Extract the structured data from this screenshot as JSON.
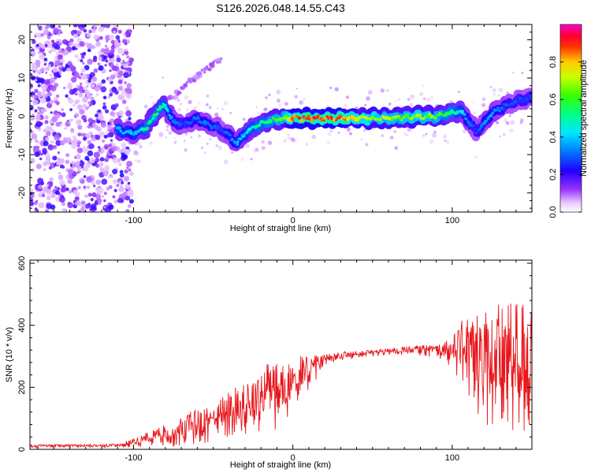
{
  "title": "S126.2026.048.14.55.C43",
  "colors": {
    "snr_line": "#e8161b",
    "axis": "#000000",
    "colormap": [
      "#ffffff",
      "#f0d8ff",
      "#9933ff",
      "#3300ff",
      "#0055ff",
      "#00e5ff",
      "#00ff66",
      "#66ff00",
      "#ffee00",
      "#ff8800",
      "#ff0000",
      "#ff00cc"
    ]
  },
  "chart_data": [
    {
      "type": "heatmap",
      "name": "spectrogram",
      "xlabel": "Height of straight line (km)",
      "ylabel": "Frequency (Hz)",
      "xlim": [
        -165,
        150
      ],
      "ylim": [
        -25,
        24
      ],
      "x_ticks": [
        -100,
        0,
        100
      ],
      "x_tick_labels": [
        "-100",
        "0",
        "100"
      ],
      "y_ticks": [
        -20,
        -10,
        0,
        10,
        20
      ],
      "y_tick_labels": [
        "-20",
        "-10",
        "0",
        "10",
        "20"
      ],
      "noise_region_x": [
        -165,
        -105
      ],
      "ridge": {
        "x": [
          -110,
          -100,
          -92,
          -85,
          -80,
          -75,
          -68,
          -60,
          -52,
          -45,
          -40,
          -35,
          -30,
          -25,
          -20,
          -15,
          -10,
          -5,
          0,
          10,
          20,
          30,
          40,
          50,
          60,
          70,
          80,
          90,
          100,
          105,
          110,
          115,
          120,
          125,
          130,
          140,
          150
        ],
        "freq": [
          -3.5,
          -4.5,
          -3,
          1.5,
          3,
          -1.5,
          -2,
          -0.5,
          -2.5,
          -3.5,
          -5,
          -7,
          -4.5,
          -3,
          -2,
          -1.2,
          -0.8,
          -0.5,
          -0.5,
          -0.5,
          -0.5,
          -0.5,
          -0.5,
          -0.5,
          -0.5,
          -0.3,
          0,
          0,
          1,
          1.5,
          -1,
          -4,
          -2,
          1,
          2,
          4,
          5
        ],
        "amplitude": [
          0.45,
          0.4,
          0.55,
          0.6,
          0.5,
          0.35,
          0.3,
          0.35,
          0.35,
          0.3,
          0.35,
          0.4,
          0.45,
          0.5,
          0.55,
          0.6,
          0.65,
          0.7,
          0.9,
          0.95,
          0.95,
          0.92,
          0.8,
          0.75,
          0.75,
          0.7,
          0.75,
          0.7,
          0.55,
          0.5,
          0.35,
          0.3,
          0.35,
          0.4,
          0.35,
          0.3,
          0.3
        ]
      },
      "side_branch": {
        "x": [
          -85,
          -75,
          -65,
          -55,
          -45
        ],
        "freq": [
          2,
          5,
          9,
          12,
          15
        ]
      },
      "colorbar": {
        "label": "Normalized spectral amplitude",
        "range": [
          0,
          1
        ],
        "ticks": [
          0.0,
          0.2,
          0.4,
          0.6,
          0.8
        ],
        "tick_labels": [
          "0.0",
          "0.2",
          "0.4",
          "0.6",
          "0.8"
        ]
      }
    },
    {
      "type": "line",
      "name": "snr",
      "xlabel": "Height of straight line (km)",
      "ylabel": "SNR (10 * v/v)",
      "xlim": [
        -165,
        150
      ],
      "ylim": [
        0,
        610
      ],
      "x_ticks": [
        -100,
        0,
        100
      ],
      "x_tick_labels": [
        "-100",
        "0",
        "100"
      ],
      "y_ticks": [
        0,
        200,
        400,
        600
      ],
      "y_tick_labels": [
        "0",
        "200",
        "400",
        "600"
      ],
      "envelope": {
        "x": [
          -165,
          -110,
          -100,
          -90,
          -80,
          -70,
          -60,
          -50,
          -40,
          -30,
          -20,
          -10,
          0,
          10,
          20,
          30,
          40,
          50,
          60,
          70,
          80,
          90,
          100,
          110,
          120,
          130,
          140,
          150
        ],
        "base": [
          10,
          12,
          20,
          35,
          45,
          60,
          75,
          90,
          110,
          130,
          160,
          190,
          210,
          250,
          285,
          300,
          305,
          310,
          315,
          318,
          320,
          320,
          315,
          300,
          280,
          260,
          260,
          260
        ],
        "spread": [
          5,
          6,
          15,
          25,
          40,
          50,
          60,
          70,
          80,
          90,
          110,
          130,
          100,
          60,
          25,
          15,
          12,
          12,
          12,
          15,
          18,
          25,
          50,
          150,
          200,
          220,
          230,
          230
        ]
      }
    }
  ]
}
